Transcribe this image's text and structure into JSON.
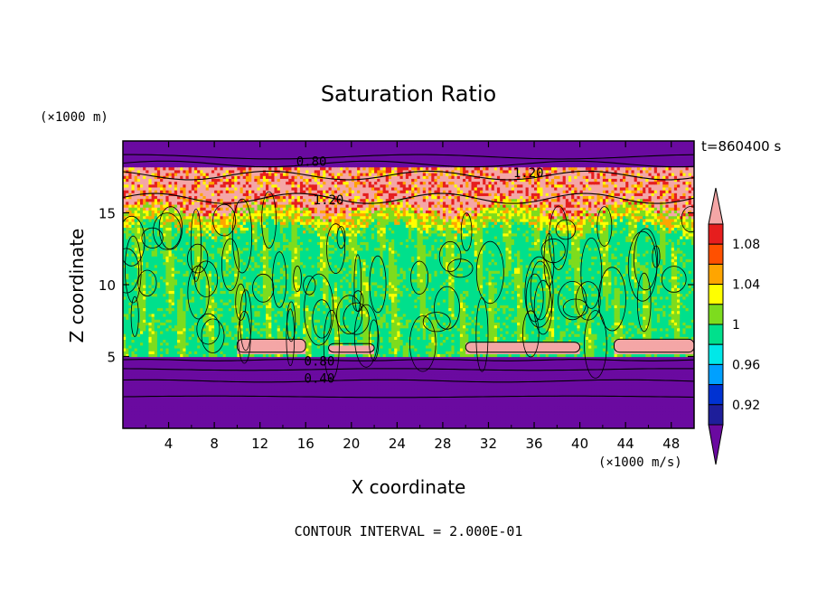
{
  "chart_data": {
    "type": "heatmap",
    "title": "Saturation Ratio",
    "xlabel": "X coordinate",
    "ylabel": "Z coordinate",
    "x_units": "(×1000 m/s)",
    "y_units": "(×1000 m)",
    "time_label": "t=860400 s",
    "footer": "CONTOUR INTERVAL = 2.000E-01",
    "xlim": [
      0,
      50
    ],
    "ylim": [
      0,
      20
    ],
    "x_ticks": [
      "4",
      "8",
      "12",
      "16",
      "20",
      "24",
      "28",
      "32",
      "36",
      "40",
      "44",
      "48"
    ],
    "y_ticks": [
      "5",
      "10",
      "15"
    ],
    "x_tick_values": [
      4,
      8,
      12,
      16,
      20,
      24,
      28,
      32,
      36,
      40,
      44,
      48
    ],
    "y_tick_values": [
      5,
      10,
      15
    ],
    "contour_labels": [
      {
        "text": "0.80",
        "x": 16.5,
        "z": 18.6
      },
      {
        "text": "1.20",
        "x": 35.5,
        "z": 17.8
      },
      {
        "text": "1.20",
        "x": 18.0,
        "z": 15.9
      },
      {
        "text": "0.80",
        "x": 17.2,
        "z": 4.7
      },
      {
        "text": "0.40",
        "x": 17.2,
        "z": 3.5
      }
    ],
    "colorbar": {
      "labels": [
        "1.08",
        "1.04",
        "1",
        "0.96",
        "0.92"
      ],
      "label_values": [
        1.08,
        1.04,
        1.0,
        0.96,
        0.92
      ],
      "levels": [
        0.9,
        0.92,
        0.94,
        0.96,
        0.98,
        1.0,
        1.02,
        1.04,
        1.06,
        1.08,
        1.1
      ],
      "colors": [
        "#6a0aa0",
        "#1e1e9a",
        "#0032d2",
        "#00a0ff",
        "#00e8e8",
        "#00e08c",
        "#7ddc1e",
        "#ffff00",
        "#ffa500",
        "#ff5000",
        "#e61e1e",
        "#f4a6a6"
      ],
      "extend": "both"
    },
    "regions": {
      "low_dry_layer_top_z": 5.0,
      "moist_layer_top_z": 15.2,
      "high_supersaturated_band_z": [
        15.2,
        18.2
      ],
      "upper_dry_layer_bottom_z": 18.2,
      "low_cloud_patches": [
        {
          "x": [
            10,
            16
          ],
          "z": [
            5.3,
            6.2
          ]
        },
        {
          "x": [
            18,
            22
          ],
          "z": [
            5.3,
            5.9
          ]
        },
        {
          "x": [
            30,
            40
          ],
          "z": [
            5.3,
            6.0
          ]
        },
        {
          "x": [
            43,
            50
          ],
          "z": [
            5.3,
            6.2
          ]
        }
      ]
    }
  }
}
